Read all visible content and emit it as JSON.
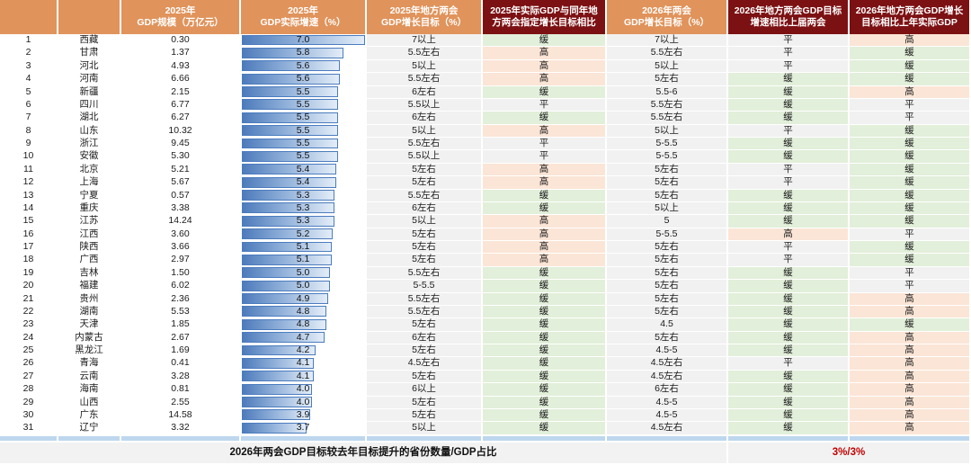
{
  "chart_data": {
    "type": "table",
    "title": "各省份2025/2026年GDP增长目标与实际增速对比",
    "bar_max": 7.0,
    "bar_unit": "%",
    "status_colors": {
      "缓": "#E2EFDA",
      "高": "#FBE5D6",
      "平": "#F1F1F1"
    },
    "columns": [
      {
        "id": "rank",
        "style": "orange",
        "lines": [
          "",
          ""
        ]
      },
      {
        "id": "province",
        "style": "orange",
        "lines": [
          "",
          ""
        ]
      },
      {
        "id": "gdp-2025",
        "style": "orange",
        "lines": [
          "2025年",
          "GDP规模（万亿元）"
        ]
      },
      {
        "id": "growth-2025",
        "style": "orange",
        "lines": [
          "2025年",
          "GDP实际增速（%）"
        ]
      },
      {
        "id": "target-2025",
        "style": "orange",
        "lines": [
          "2025年地方两会",
          "GDP增长目标（%）"
        ]
      },
      {
        "id": "cmp-2025",
        "style": "darkred",
        "lines": [
          "2025年实际GDP与同年地",
          "方两会指定增长目标相比"
        ]
      },
      {
        "id": "target-2026",
        "style": "orange",
        "lines": [
          "2026年两会",
          "GDP增长目标（%）"
        ]
      },
      {
        "id": "cmp-prev",
        "style": "darkred",
        "lines": [
          "2026年地方两会GDP目标",
          "增速相比上届两会"
        ]
      },
      {
        "id": "cmp-actual",
        "style": "darkred",
        "lines": [
          "2026年地方两会GDP增长",
          "目标相比上年实际GDP"
        ]
      }
    ],
    "rows": [
      [
        "1",
        "西藏",
        "0.30",
        "7.0",
        "7以上",
        "缓",
        "7以上",
        "平",
        "高"
      ],
      [
        "2",
        "甘肃",
        "1.37",
        "5.8",
        "5.5左右",
        "高",
        "5.5左右",
        "平",
        "缓"
      ],
      [
        "3",
        "河北",
        "4.93",
        "5.6",
        "5以上",
        "高",
        "5以上",
        "平",
        "缓"
      ],
      [
        "4",
        "河南",
        "6.66",
        "5.6",
        "5.5左右",
        "高",
        "5左右",
        "缓",
        "缓"
      ],
      [
        "5",
        "新疆",
        "2.15",
        "5.5",
        "6左右",
        "缓",
        "5.5-6",
        "缓",
        "高"
      ],
      [
        "6",
        "四川",
        "6.77",
        "5.5",
        "5.5以上",
        "平",
        "5.5左右",
        "缓",
        "平"
      ],
      [
        "7",
        "湖北",
        "6.27",
        "5.5",
        "6左右",
        "缓",
        "5.5左右",
        "缓",
        "平"
      ],
      [
        "8",
        "山东",
        "10.32",
        "5.5",
        "5以上",
        "高",
        "5以上",
        "平",
        "缓"
      ],
      [
        "9",
        "浙江",
        "9.45",
        "5.5",
        "5.5左右",
        "平",
        "5-5.5",
        "缓",
        "缓"
      ],
      [
        "10",
        "安徽",
        "5.30",
        "5.5",
        "5.5以上",
        "平",
        "5-5.5",
        "缓",
        "缓"
      ],
      [
        "11",
        "北京",
        "5.21",
        "5.4",
        "5左右",
        "高",
        "5左右",
        "平",
        "缓"
      ],
      [
        "12",
        "上海",
        "5.67",
        "5.4",
        "5左右",
        "高",
        "5左右",
        "平",
        "缓"
      ],
      [
        "13",
        "宁夏",
        "0.57",
        "5.3",
        "5.5左右",
        "缓",
        "5左右",
        "缓",
        "缓"
      ],
      [
        "14",
        "重庆",
        "3.38",
        "5.3",
        "6左右",
        "缓",
        "5以上",
        "缓",
        "缓"
      ],
      [
        "15",
        "江苏",
        "14.24",
        "5.3",
        "5以上",
        "高",
        "5",
        "缓",
        "缓"
      ],
      [
        "16",
        "江西",
        "3.60",
        "5.2",
        "5左右",
        "高",
        "5-5.5",
        "高",
        "平"
      ],
      [
        "17",
        "陕西",
        "3.66",
        "5.1",
        "5左右",
        "高",
        "5左右",
        "平",
        "缓"
      ],
      [
        "18",
        "广西",
        "2.97",
        "5.1",
        "5左右",
        "高",
        "5左右",
        "平",
        "缓"
      ],
      [
        "19",
        "吉林",
        "1.50",
        "5.0",
        "5.5左右",
        "缓",
        "5左右",
        "缓",
        "平"
      ],
      [
        "20",
        "福建",
        "6.02",
        "5.0",
        "5-5.5",
        "缓",
        "5左右",
        "缓",
        "平"
      ],
      [
        "21",
        "贵州",
        "2.36",
        "4.9",
        "5.5左右",
        "缓",
        "5左右",
        "缓",
        "高"
      ],
      [
        "22",
        "湖南",
        "5.53",
        "4.8",
        "5.5左右",
        "缓",
        "5左右",
        "缓",
        "高"
      ],
      [
        "23",
        "天津",
        "1.85",
        "4.8",
        "5左右",
        "缓",
        "4.5",
        "缓",
        "缓"
      ],
      [
        "24",
        "内蒙古",
        "2.67",
        "4.7",
        "6左右",
        "缓",
        "5左右",
        "缓",
        "高"
      ],
      [
        "25",
        "黑龙江",
        "1.69",
        "4.2",
        "5左右",
        "缓",
        "4.5-5",
        "缓",
        "高"
      ],
      [
        "26",
        "青海",
        "0.41",
        "4.1",
        "4.5左右",
        "缓",
        "4.5左右",
        "平",
        "高"
      ],
      [
        "27",
        "云南",
        "3.28",
        "4.1",
        "5左右",
        "缓",
        "4.5左右",
        "缓",
        "高"
      ],
      [
        "28",
        "海南",
        "0.81",
        "4.0",
        "6以上",
        "缓",
        "6左右",
        "缓",
        "高"
      ],
      [
        "29",
        "山西",
        "2.55",
        "4.0",
        "5左右",
        "缓",
        "4.5-5",
        "缓",
        "高"
      ],
      [
        "30",
        "广东",
        "14.58",
        "3.9",
        "5左右",
        "缓",
        "4.5-5",
        "缓",
        "高"
      ],
      [
        "31",
        "辽宁",
        "3.32",
        "3.7",
        "5以上",
        "缓",
        "4.5左右",
        "缓",
        "高"
      ]
    ],
    "footer": {
      "label": "2026年两会GDP目标较去年目标提升的省份数量/GDP占比",
      "value": "3%/3%"
    },
    "colors": {
      "header_orange": "#E0935B",
      "header_darkred": "#7C1113",
      "bar_border": "#4B7CBF",
      "bar_fill_start": "#4D7BBB",
      "bar_fill_end": "#E3EDF8",
      "separator_blue": "#BDD7EE",
      "footer_value_red": "#C00000",
      "target_column_shade": "#F1F1F1"
    }
  }
}
